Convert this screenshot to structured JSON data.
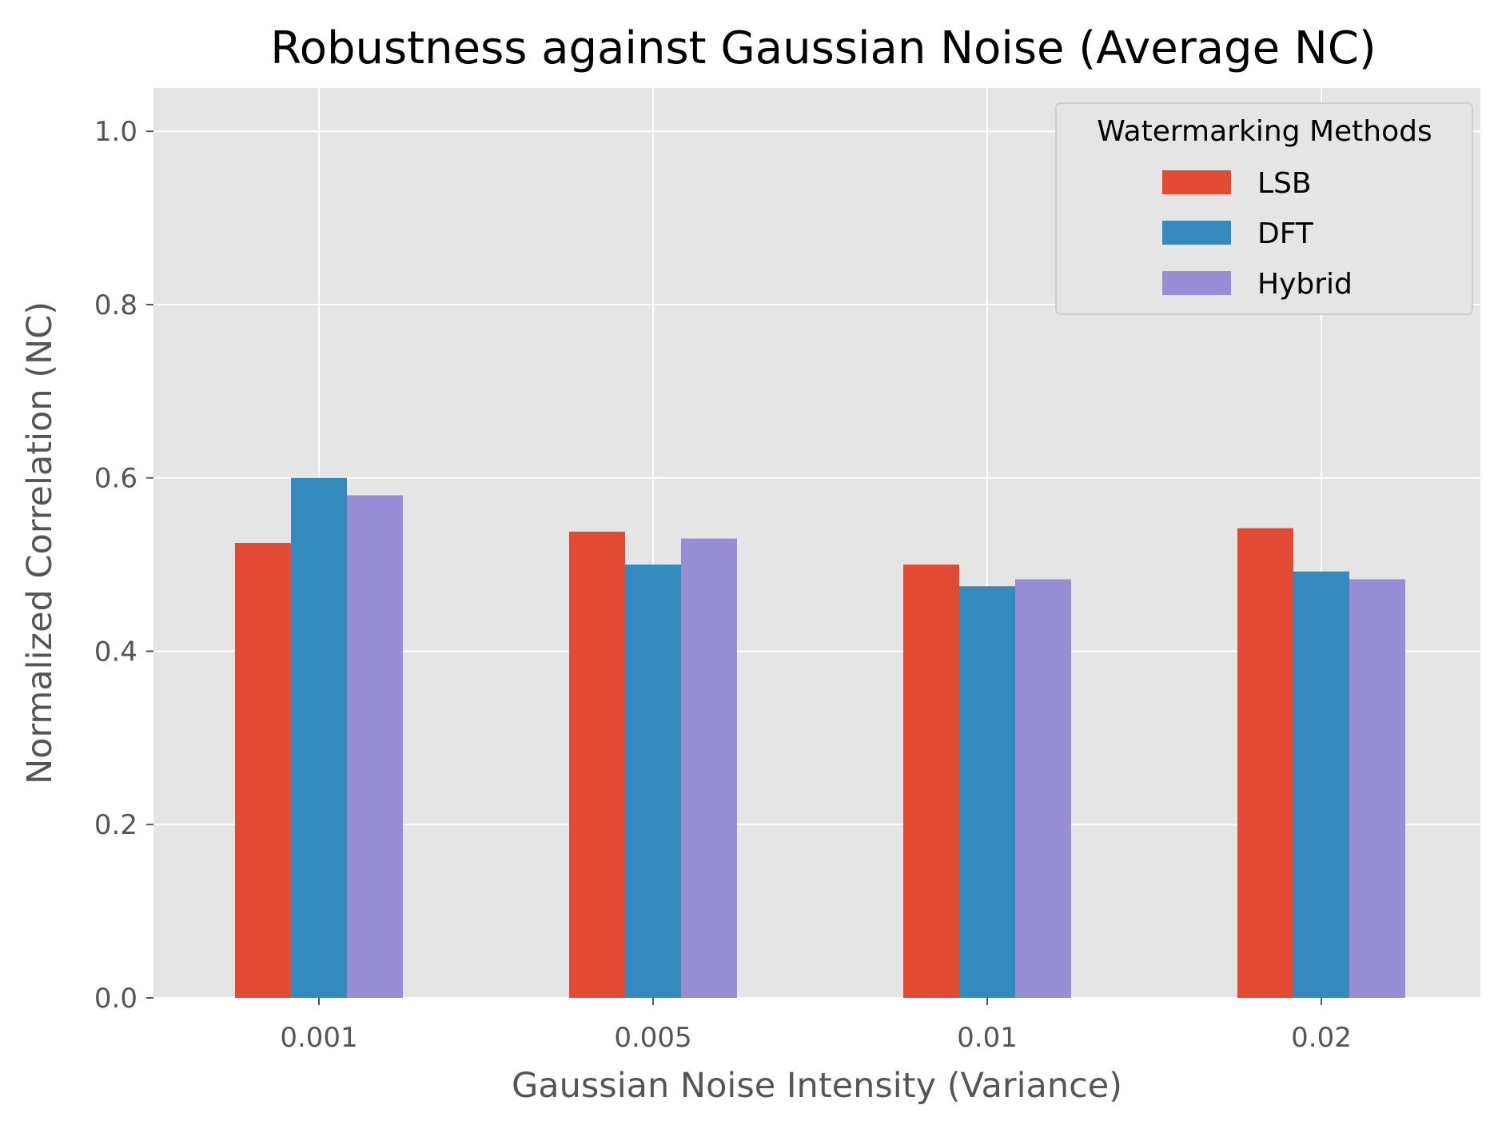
{
  "chart_data": {
    "type": "bar",
    "title": "Robustness against Gaussian Noise (Average NC)",
    "xlabel": "Gaussian Noise Intensity (Variance)",
    "ylabel": "Normalized Correlation (NC)",
    "categories": [
      "0.001",
      "0.005",
      "0.01",
      "0.02"
    ],
    "series": [
      {
        "name": "LSB",
        "color": "#E24A33",
        "values": [
          0.525,
          0.538,
          0.5,
          0.542
        ]
      },
      {
        "name": "DFT",
        "color": "#348ABD",
        "values": [
          0.6,
          0.5,
          0.475,
          0.492
        ]
      },
      {
        "name": "Hybrid",
        "color": "#988ED5",
        "values": [
          0.58,
          0.53,
          0.483,
          0.483
        ]
      }
    ],
    "ylim": [
      0,
      1.05
    ],
    "yticks": [
      "0.0",
      "0.2",
      "0.4",
      "0.6",
      "0.8",
      "1.0"
    ],
    "grid": true,
    "legend": {
      "title": "Watermarking Methods",
      "placement": "top-right"
    },
    "style": {
      "plot_background": "#E5E5E5",
      "grid_color": "#FFFFFF",
      "tick_label_color": "#555555",
      "title_color": "#000000"
    }
  }
}
